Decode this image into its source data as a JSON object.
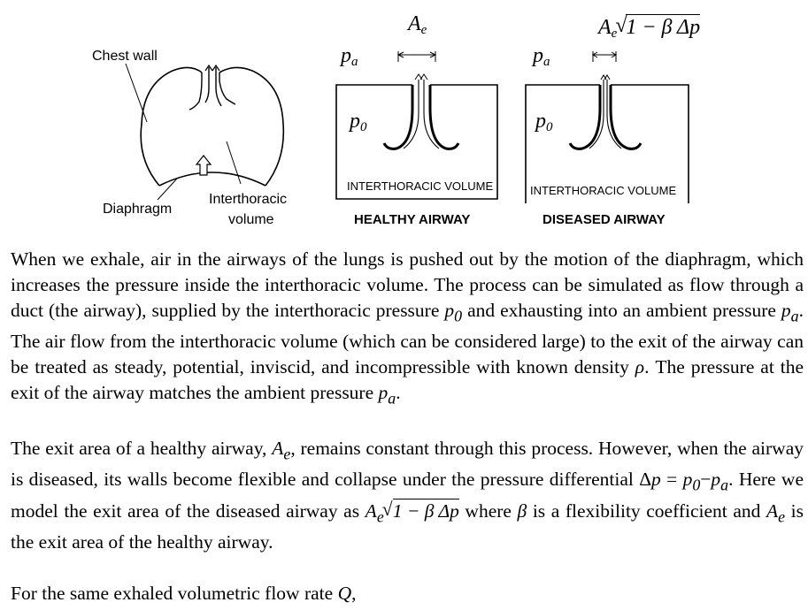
{
  "figure": {
    "chest": {
      "chest_wall_label": "Chest wall",
      "diaphragm_label": "Diaphragm",
      "interthoracic_label_line1": "Interthoracic",
      "interthoracic_label_line2": "volume"
    },
    "healthy": {
      "exit_area_symbol": "A",
      "exit_area_subscript": "e",
      "ambient_pressure_symbol": "p",
      "ambient_pressure_subscript": "a",
      "inner_pressure_symbol": "p",
      "inner_pressure_subscript": "0",
      "volume_label": "INTERTHORACIC VOLUME",
      "caption": "HEALTHY AIRWAY"
    },
    "diseased": {
      "exit_area_expression": "A",
      "exit_area_subscript": "e",
      "exit_area_radicand": "1 − β Δp",
      "ambient_pressure_symbol": "p",
      "ambient_pressure_subscript": "a",
      "inner_pressure_symbol": "p",
      "inner_pressure_subscript": "0",
      "volume_label": "INTERTHORACIC VOLUME",
      "caption": "DISEASED AIRWAY"
    }
  },
  "paragraphs": {
    "p1": {
      "part1": "When we exhale, air in the airways of the lungs is pushed out by the motion of the diaphragm, which increases the pressure inside the interthoracic volume.  The process can be simulated as flow through a duct (the airway), supplied by the interthoracic pressure ",
      "sym_p0": "p",
      "sym_p0_sub": "0",
      "part2": " and exhausting into an ambient pressure ",
      "sym_pa": "p",
      "sym_pa_sub": "a",
      "part3": ".   The air flow from the interthoracic volume (which can be considered large) to the exit of the airway can be treated as steady, potential, inviscid, and incompressible with known density ",
      "sym_rho": "ρ",
      "part4": ".  The pressure at the exit of the airway matches the ambient pressure ",
      "sym_pa2": "p",
      "sym_pa2_sub": "a",
      "part5": "."
    },
    "p2": {
      "part1": "The exit area of a healthy airway, ",
      "sym_Ae": "A",
      "sym_Ae_sub": "e",
      "part2": ", remains constant through this process. However, when the airway is diseased, its walls become flexible and collapse under the pressure differential Δ",
      "sym_p": "p",
      "part3": " = ",
      "sym_p0": "p",
      "sym_p0_sub": "0",
      "part4": "−",
      "sym_pa": "p",
      "sym_pa_sub": "a",
      "part5": ".   Here we model the exit area of the diseased airway as ",
      "expr_A": "A",
      "expr_A_sub": "e",
      "expr_radicand": "1 − β Δp",
      "part6": " where ",
      "sym_beta": "β",
      "part7": " is a flexibility coefficient and ",
      "sym_Ae2": "A",
      "sym_Ae2_sub": "e",
      "part8": " is the exit area of the healthy airway."
    },
    "p3": {
      "part1": "For the same exhaled volumetric flow rate ",
      "sym_Q": "Q",
      "part2": ","
    }
  }
}
